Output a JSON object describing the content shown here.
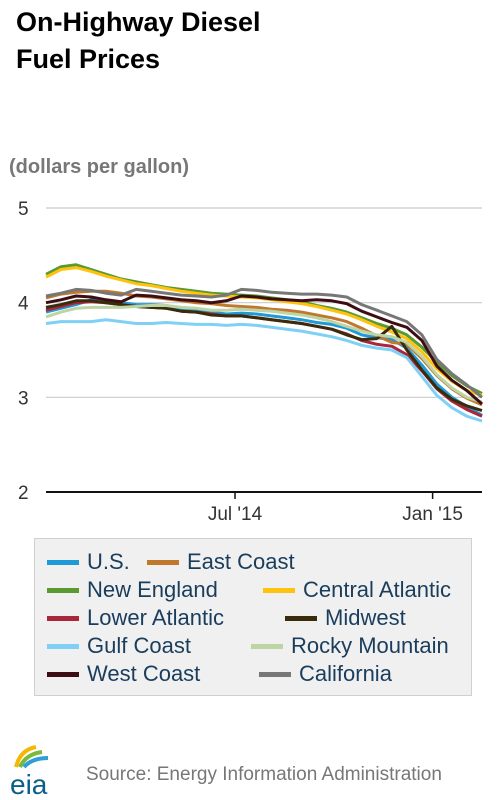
{
  "title_line1": "On-Highway Diesel",
  "title_line2": "Fuel Prices",
  "source": "Source: Energy Information Administration",
  "logo_text": "eia",
  "chart_data": {
    "type": "line",
    "units_label": "(dollars per gallon)",
    "ylim": [
      2,
      5
    ],
    "y_ticks": [
      2,
      3,
      4,
      5
    ],
    "y_tick_labels": [
      "2",
      "3",
      "4",
      "5"
    ],
    "x_start": "2014-01-06",
    "x_end": "2015-02-16",
    "x_ticks": [
      {
        "date": "2014-07-01",
        "label": "Jul '14"
      },
      {
        "date": "2015-01-01",
        "label": "Jan '15"
      }
    ],
    "grid": "horizontal",
    "legend_position": "bottom",
    "x": [
      "2014-01-06",
      "2014-01-20",
      "2014-02-03",
      "2014-02-17",
      "2014-03-03",
      "2014-03-17",
      "2014-03-31",
      "2014-04-14",
      "2014-04-28",
      "2014-05-12",
      "2014-05-26",
      "2014-06-09",
      "2014-06-23",
      "2014-07-07",
      "2014-07-21",
      "2014-08-04",
      "2014-08-18",
      "2014-09-01",
      "2014-09-15",
      "2014-09-29",
      "2014-10-13",
      "2014-10-27",
      "2014-11-10",
      "2014-11-24",
      "2014-12-08",
      "2014-12-22",
      "2015-01-05",
      "2015-01-19",
      "2015-02-02",
      "2015-02-16"
    ],
    "series": [
      {
        "name": "U.S.",
        "color": "#1f9ad6",
        "values": [
          3.9,
          3.94,
          3.98,
          4.03,
          4.02,
          4.0,
          3.98,
          3.98,
          3.97,
          3.93,
          3.92,
          3.9,
          3.88,
          3.89,
          3.88,
          3.86,
          3.84,
          3.82,
          3.79,
          3.77,
          3.73,
          3.66,
          3.63,
          3.61,
          3.52,
          3.34,
          3.14,
          3.0,
          2.9,
          2.81
        ]
      },
      {
        "name": "East Coast",
        "color": "#c0782e",
        "values": [
          4.05,
          4.09,
          4.11,
          4.12,
          4.12,
          4.1,
          4.07,
          4.06,
          4.04,
          4.02,
          4.0,
          3.99,
          3.97,
          3.96,
          3.95,
          3.93,
          3.92,
          3.9,
          3.87,
          3.84,
          3.8,
          3.73,
          3.65,
          3.58,
          3.56,
          3.41,
          3.23,
          3.09,
          2.99,
          2.92
        ]
      },
      {
        "name": "New England",
        "color": "#5a9a30",
        "values": [
          4.3,
          4.38,
          4.4,
          4.35,
          4.3,
          4.25,
          4.22,
          4.19,
          4.16,
          4.14,
          4.12,
          4.1,
          4.09,
          4.08,
          4.07,
          4.05,
          4.03,
          4.01,
          3.97,
          3.94,
          3.9,
          3.84,
          3.78,
          3.73,
          3.66,
          3.53,
          3.37,
          3.23,
          3.12,
          3.04
        ]
      },
      {
        "name": "Central Atlantic",
        "color": "#ffc20e",
        "values": [
          4.27,
          4.35,
          4.37,
          4.33,
          4.28,
          4.24,
          4.2,
          4.18,
          4.15,
          4.12,
          4.1,
          4.08,
          4.07,
          4.06,
          4.05,
          4.03,
          4.01,
          3.99,
          3.96,
          3.92,
          3.88,
          3.82,
          3.75,
          3.69,
          3.62,
          3.48,
          3.3,
          3.17,
          3.07,
          3.02
        ]
      },
      {
        "name": "Lower Atlantic",
        "color": "#a8273a",
        "values": [
          3.92,
          3.96,
          4.0,
          4.01,
          4.0,
          3.98,
          3.96,
          3.95,
          3.94,
          3.91,
          3.9,
          3.88,
          3.86,
          3.86,
          3.84,
          3.82,
          3.8,
          3.78,
          3.75,
          3.72,
          3.67,
          3.6,
          3.56,
          3.54,
          3.45,
          3.28,
          3.09,
          2.96,
          2.87,
          2.8
        ]
      },
      {
        "name": "Midwest",
        "color": "#3a2c0a",
        "values": [
          3.95,
          3.98,
          4.02,
          4.02,
          4.0,
          3.98,
          3.96,
          3.95,
          3.94,
          3.91,
          3.9,
          3.87,
          3.86,
          3.86,
          3.84,
          3.82,
          3.8,
          3.78,
          3.75,
          3.72,
          3.66,
          3.61,
          3.62,
          3.75,
          3.5,
          3.29,
          3.1,
          2.98,
          2.91,
          2.86
        ]
      },
      {
        "name": "Gulf Coast",
        "color": "#7ed0f5",
        "values": [
          3.78,
          3.8,
          3.8,
          3.8,
          3.82,
          3.8,
          3.78,
          3.78,
          3.79,
          3.78,
          3.77,
          3.77,
          3.76,
          3.77,
          3.76,
          3.74,
          3.72,
          3.7,
          3.67,
          3.64,
          3.6,
          3.55,
          3.52,
          3.5,
          3.42,
          3.22,
          3.02,
          2.89,
          2.8,
          2.75
        ]
      },
      {
        "name": "Rocky Mountain",
        "color": "#bdd5a4",
        "values": [
          3.85,
          3.9,
          3.94,
          3.95,
          3.95,
          3.95,
          3.96,
          3.97,
          3.97,
          3.95,
          3.94,
          3.92,
          3.92,
          3.93,
          3.92,
          3.91,
          3.89,
          3.87,
          3.84,
          3.8,
          3.75,
          3.7,
          3.66,
          3.64,
          3.58,
          3.43,
          3.24,
          3.1,
          3.0,
          2.95
        ]
      },
      {
        "name": "West Coast",
        "color": "#3c0e14",
        "values": [
          4.0,
          4.03,
          4.07,
          4.06,
          4.03,
          4.01,
          4.08,
          4.07,
          4.05,
          4.03,
          4.02,
          4.0,
          4.02,
          4.07,
          4.06,
          4.04,
          4.03,
          4.02,
          4.03,
          4.02,
          3.99,
          3.91,
          3.85,
          3.79,
          3.74,
          3.6,
          3.33,
          3.18,
          3.07,
          2.93
        ]
      },
      {
        "name": "California",
        "color": "#777777",
        "values": [
          4.07,
          4.1,
          4.14,
          4.13,
          4.1,
          4.08,
          4.14,
          4.12,
          4.1,
          4.08,
          4.07,
          4.06,
          4.08,
          4.14,
          4.13,
          4.11,
          4.1,
          4.09,
          4.09,
          4.08,
          4.06,
          3.98,
          3.92,
          3.86,
          3.8,
          3.66,
          3.4,
          3.25,
          3.13,
          3.0
        ]
      }
    ]
  }
}
